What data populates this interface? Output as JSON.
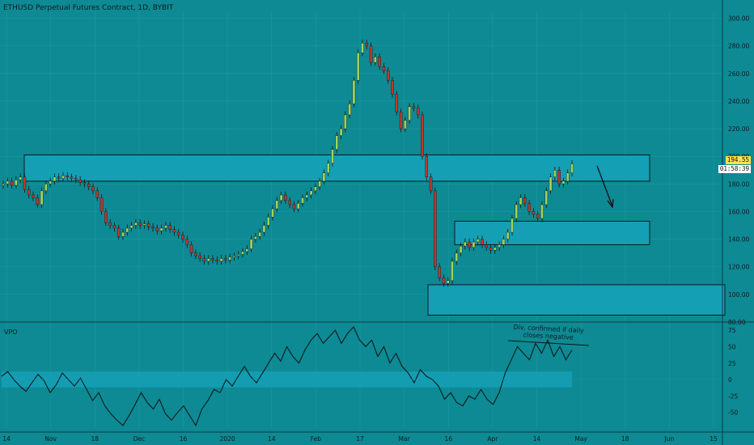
{
  "header": {
    "title": "ETHUSD Perpetual Futures Contract, 1D, BYBIT"
  },
  "oscillator": {
    "title": "VPO"
  },
  "price_tags": {
    "last": "194.55",
    "countdown": "01:58:39"
  },
  "annotation": {
    "text": "Div. confirmed if daily closes negative"
  },
  "colors": {
    "background": "#0e8a94",
    "bullish_candle": "#9fd45a",
    "bearish_candle": "#c0352b",
    "reversal_candle": "#b04fa8",
    "zone_fill": "#159fb5",
    "grid": "#1f98a2"
  },
  "chart_data": [
    {
      "type": "candlestick",
      "title": "ETHUSD Perpetual Futures Contract, 1D, BYBIT",
      "ylim": [
        80,
        305
      ],
      "y_ticks": [
        "300.00",
        "280.00",
        "260.00",
        "240.00",
        "220.00",
        "200.00",
        "180.00",
        "160.00",
        "140.00",
        "120.00",
        "100.00",
        "80.00"
      ],
      "x_ticks": [
        "14",
        "Nov",
        "18",
        "Dec",
        "16",
        "2020",
        "14",
        "Feb",
        "17",
        "Mar",
        "16",
        "Apr",
        "14",
        "May",
        "18",
        "Jun",
        "15"
      ],
      "series": [
        {
          "values": [
            180,
            182,
            179,
            183,
            185,
            176,
            172,
            170,
            165,
            175,
            180,
            182,
            185,
            184,
            186,
            185,
            184,
            183,
            181,
            180,
            178,
            175,
            170,
            160,
            152,
            150,
            148,
            142,
            145,
            148,
            150,
            152,
            150,
            151,
            149,
            148,
            146,
            148,
            150,
            147,
            145,
            143,
            140,
            136,
            130,
            128,
            126,
            124,
            126,
            125,
            124,
            126,
            125,
            127,
            128,
            129,
            131,
            133,
            140,
            142,
            145,
            150,
            156,
            162,
            168,
            172,
            168,
            165,
            162,
            166,
            170,
            172,
            175,
            178,
            182,
            188,
            195,
            205,
            215,
            220,
            230,
            238,
            255,
            275,
            282,
            280,
            268,
            272,
            265,
            262,
            255,
            245,
            232,
            220,
            226,
            236,
            235,
            230,
            200,
            185,
            175,
            120,
            112,
            108,
            110,
            124,
            130,
            135,
            138,
            134,
            138,
            140,
            136,
            134,
            132,
            134,
            136,
            140,
            145,
            155,
            165,
            170,
            166,
            160,
            158,
            155,
            165,
            175,
            185,
            190,
            180,
            182,
            188,
            194.55
          ]
        }
      ],
      "zones": [
        {
          "low": 182,
          "high": 201
        },
        {
          "low": 136,
          "high": 153
        },
        {
          "low": 85,
          "high": 107
        }
      ]
    },
    {
      "type": "line",
      "title": "VPO",
      "ylim": [
        -75,
        85
      ],
      "y_ticks": [
        "75",
        "50",
        "25",
        "0",
        "-25",
        "-50"
      ],
      "series": [
        {
          "values": [
            5,
            12,
            0,
            -10,
            -18,
            -5,
            8,
            -2,
            -20,
            -8,
            10,
            0,
            -10,
            2,
            -15,
            -32,
            -20,
            -40,
            -52,
            -62,
            -70,
            -55,
            -38,
            -20,
            -35,
            -45,
            -30,
            -52,
            -62,
            -50,
            -40,
            -55,
            -70,
            -45,
            -32,
            -15,
            -20,
            0,
            -10,
            5,
            20,
            5,
            -5,
            10,
            25,
            40,
            28,
            50,
            35,
            25,
            45,
            60,
            70,
            55,
            65,
            75,
            55,
            70,
            80,
            60,
            50,
            60,
            35,
            50,
            25,
            40,
            20,
            10,
            -5,
            15,
            5,
            0,
            -10,
            -30,
            -20,
            -35,
            -40,
            -25,
            -30,
            -15,
            -30,
            -38,
            -20,
            10,
            30,
            50,
            40,
            30,
            55,
            40,
            60,
            35,
            50,
            30,
            45
          ]
        }
      ]
    }
  ]
}
